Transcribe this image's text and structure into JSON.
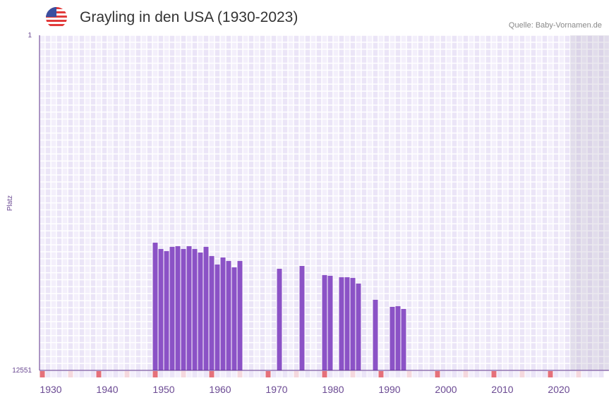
{
  "chart_data": {
    "type": "bar",
    "title": "Grayling in den USA (1930-2023)",
    "source": "Quelle: Baby-Vornamen.de",
    "ylabel": "Platz",
    "xlabel": "",
    "ylim": [
      12551,
      1
    ],
    "y_ticks": [
      "1",
      "12551"
    ],
    "x_ticks": [
      "1930",
      "1940",
      "1950",
      "1960",
      "1970",
      "1980",
      "1990",
      "2000",
      "2010",
      "2020"
    ],
    "x_range": [
      1928,
      2028
    ],
    "shaded_from_year": 2022,
    "grid": true,
    "bar_color": "#8b52c6",
    "years": [
      1948,
      1949,
      1950,
      1951,
      1952,
      1953,
      1954,
      1955,
      1956,
      1957,
      1958,
      1959,
      1960,
      1961,
      1962,
      1963,
      1970,
      1974,
      1978,
      1979,
      1981,
      1982,
      1983,
      1984,
      1987,
      1990,
      1991,
      1992
    ],
    "values": [
      7769,
      8005,
      8085,
      7926,
      7900,
      8005,
      7900,
      8005,
      8137,
      7926,
      8269,
      8587,
      8323,
      8455,
      8693,
      8455,
      8746,
      8640,
      8983,
      9010,
      9063,
      9063,
      9089,
      9300,
      9908,
      10173,
      10147,
      10252
    ]
  }
}
